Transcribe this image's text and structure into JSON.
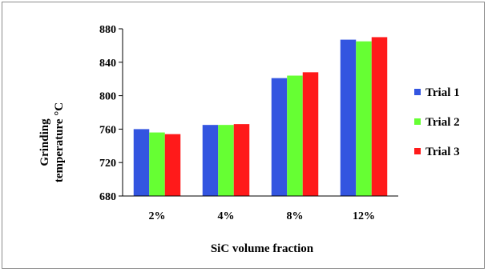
{
  "chart_data": {
    "type": "bar",
    "categories": [
      "2%",
      "4%",
      "8%",
      "12%"
    ],
    "series": [
      {
        "name": "Trial 1",
        "values": [
          760,
          765,
          821,
          867
        ],
        "color": "#3355e0"
      },
      {
        "name": "Trial 2",
        "values": [
          756,
          765,
          824,
          865
        ],
        "color": "#66ff33"
      },
      {
        "name": "Trial 3",
        "values": [
          754,
          766,
          828,
          870
        ],
        "color": "#ff1a1a"
      }
    ],
    "xlabel": "SiC volume fraction",
    "ylabel_lines": [
      "Grinding",
      "temperature °C"
    ],
    "ylim": [
      680,
      880
    ],
    "yticks": [
      680,
      720,
      760,
      800,
      840,
      880
    ],
    "ytick_labels": [
      "680",
      "720",
      "760",
      "800",
      "840",
      "880"
    ],
    "grid": false,
    "legend_position": "right"
  }
}
